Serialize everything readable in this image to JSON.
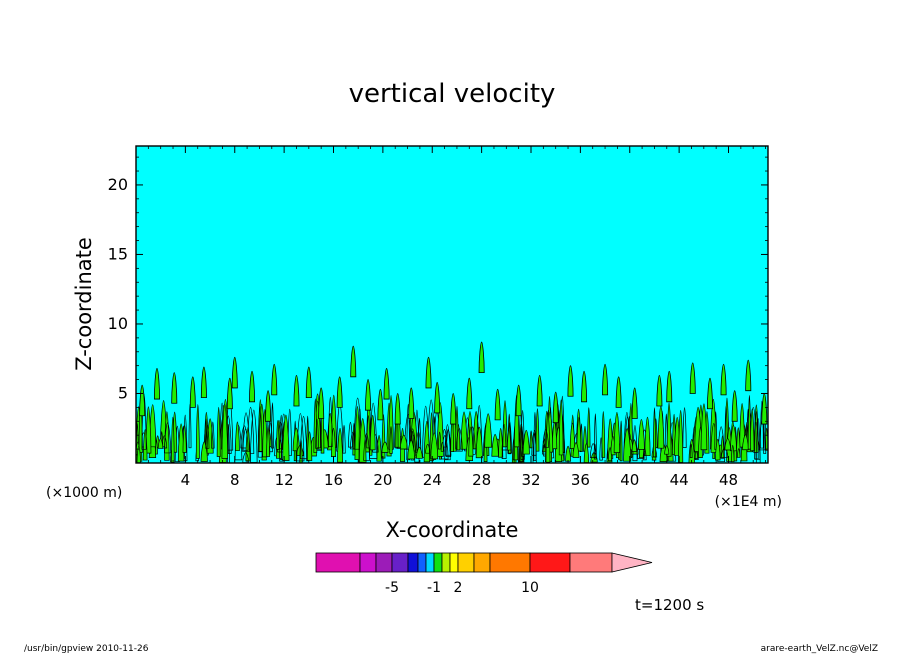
{
  "chart_data": {
    "type": "contour",
    "title": "vertical velocity",
    "xlabel": "X-coordinate",
    "ylabel": "Z-coordinate",
    "x_units_left": "(×1000 m)",
    "x_units_right": "(×1E4 m)",
    "xlim": [
      0,
      51.2
    ],
    "ylim": [
      0,
      22.8
    ],
    "x_ticks": [
      4,
      8,
      12,
      16,
      20,
      24,
      28,
      32,
      36,
      40,
      44,
      48
    ],
    "y_ticks": [
      5,
      10,
      15,
      20
    ],
    "background_color": "#00ffff",
    "updraft_color": "#22ee00",
    "plume_tops": [
      {
        "x": 0.5,
        "z": 5.6
      },
      {
        "x": 1.7,
        "z": 6.8
      },
      {
        "x": 3.1,
        "z": 6.5
      },
      {
        "x": 4.6,
        "z": 6.2
      },
      {
        "x": 5.5,
        "z": 6.9
      },
      {
        "x": 7.6,
        "z": 6.1
      },
      {
        "x": 8.0,
        "z": 7.6
      },
      {
        "x": 9.4,
        "z": 6.6
      },
      {
        "x": 10.7,
        "z": 5.2
      },
      {
        "x": 11.2,
        "z": 7.1
      },
      {
        "x": 13.0,
        "z": 6.3
      },
      {
        "x": 14.0,
        "z": 6.9
      },
      {
        "x": 15.0,
        "z": 5.4
      },
      {
        "x": 16.5,
        "z": 6.2
      },
      {
        "x": 17.6,
        "z": 8.4
      },
      {
        "x": 18.8,
        "z": 6.0
      },
      {
        "x": 19.8,
        "z": 5.3
      },
      {
        "x": 20.3,
        "z": 6.8
      },
      {
        "x": 21.2,
        "z": 5.0
      },
      {
        "x": 22.3,
        "z": 5.4
      },
      {
        "x": 23.7,
        "z": 7.6
      },
      {
        "x": 24.4,
        "z": 5.8
      },
      {
        "x": 25.7,
        "z": 5.0
      },
      {
        "x": 27.0,
        "z": 6.1
      },
      {
        "x": 28.0,
        "z": 8.7
      },
      {
        "x": 29.3,
        "z": 5.3
      },
      {
        "x": 31.0,
        "z": 5.6
      },
      {
        "x": 32.7,
        "z": 6.3
      },
      {
        "x": 34.0,
        "z": 5.1
      },
      {
        "x": 35.2,
        "z": 7.0
      },
      {
        "x": 36.3,
        "z": 6.6
      },
      {
        "x": 38.0,
        "z": 7.1
      },
      {
        "x": 39.1,
        "z": 6.2
      },
      {
        "x": 40.4,
        "z": 5.4
      },
      {
        "x": 42.4,
        "z": 6.3
      },
      {
        "x": 43.2,
        "z": 6.6
      },
      {
        "x": 45.1,
        "z": 7.2
      },
      {
        "x": 46.5,
        "z": 6.1
      },
      {
        "x": 47.6,
        "z": 7.1
      },
      {
        "x": 48.5,
        "z": 5.2
      },
      {
        "x": 49.6,
        "z": 7.4
      },
      {
        "x": 50.9,
        "z": 5.0
      }
    ]
  },
  "colorbar": {
    "colors": [
      "#e010b0",
      "#cc10cc",
      "#9c1cb8",
      "#6820c8",
      "#1010d8",
      "#1060ff",
      "#00d8ff",
      "#10e010",
      "#b8f000",
      "#ffff00",
      "#ffd000",
      "#ffa800",
      "#ff7800",
      "#ff1818",
      "#ff7a7a",
      "#ffb4c4"
    ],
    "tick_labels": [
      {
        "text": "-5",
        "boundary": 3
      },
      {
        "text": "-1",
        "boundary": 7
      },
      {
        "text": "2",
        "boundary": 10
      },
      {
        "text": "10",
        "boundary": 13
      }
    ]
  },
  "time_label": "t=1200 s",
  "footer": {
    "left": "/usr/bin/gpview   2010-11-26",
    "right": "arare-earth_VelZ.nc@VelZ"
  }
}
